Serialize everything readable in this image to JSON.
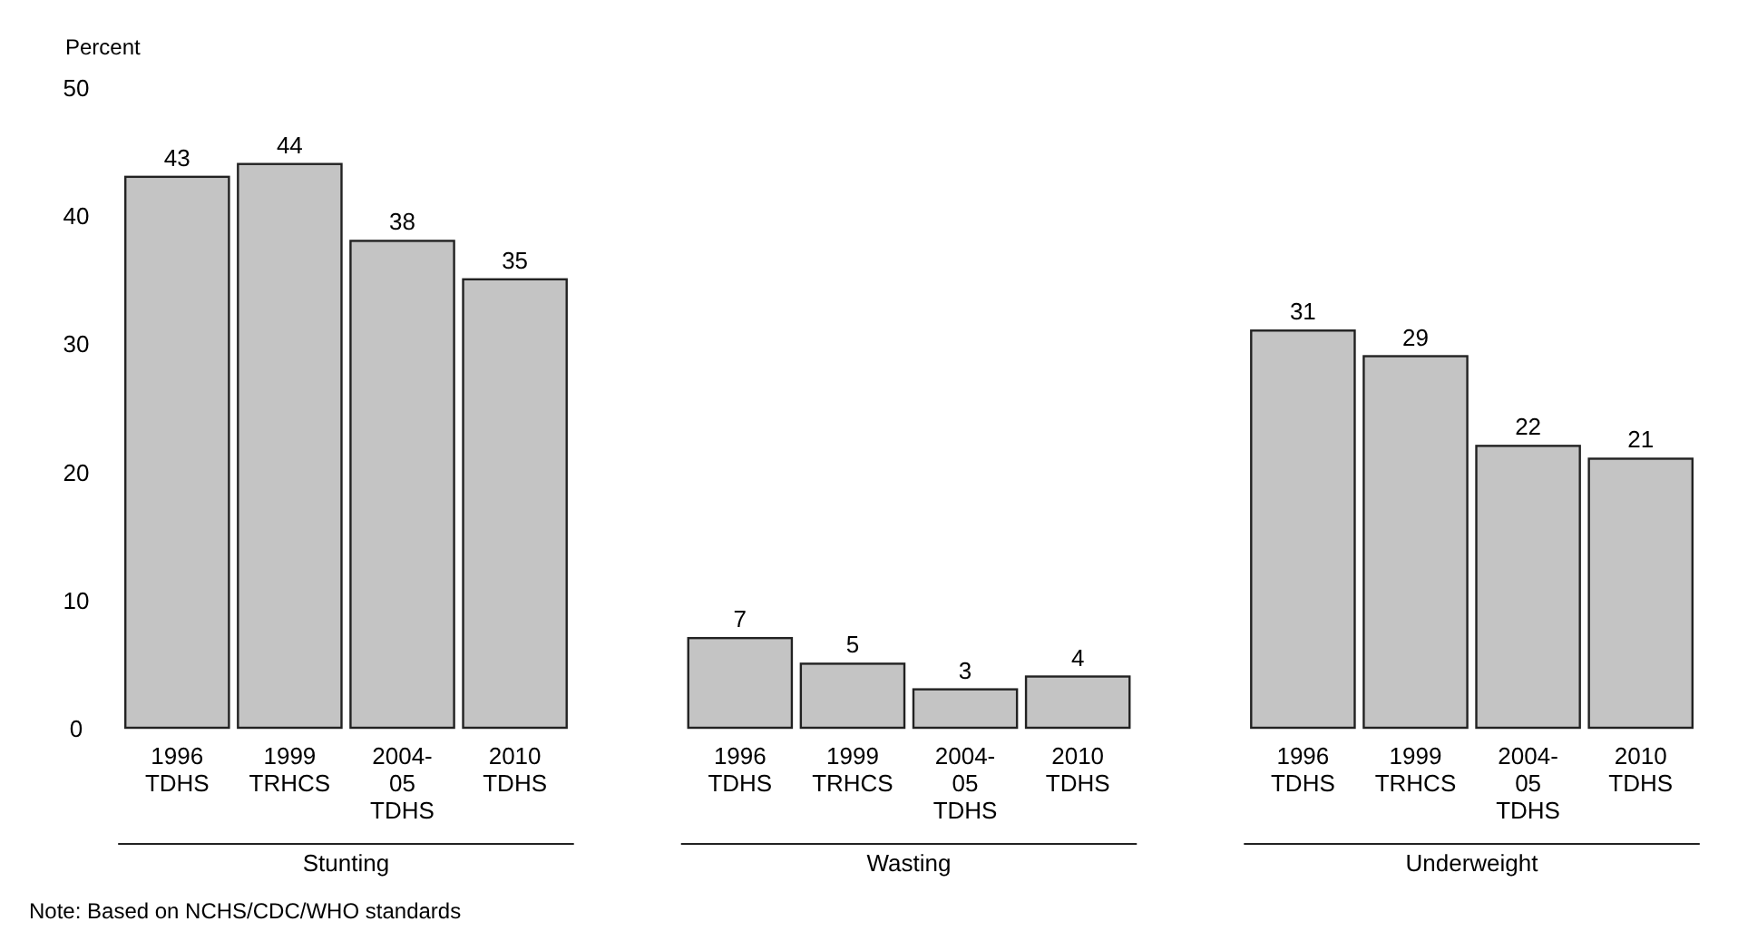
{
  "chart_data": {
    "type": "bar",
    "ylabel": "Percent",
    "categories": [
      "1996\nTDHS",
      "1999\nTRHCS",
      "2004-\n05\nTDHS",
      "2010\nTDHS",
      null,
      "1996\nTDHS",
      "1999\nTRHCS",
      "2004-\n05\nTDHS",
      "2010\nTDHS",
      null,
      "1996\nTDHS",
      "1999\nTRHCS",
      "2004-\n05\nTDHS",
      "2010\nTDHS"
    ],
    "values": [
      43,
      44,
      38,
      35,
      null,
      7,
      5,
      3,
      4,
      null,
      31,
      29,
      22,
      21
    ],
    "color": "#c4c4c4",
    "data_labels": true,
    "ylim": [
      0,
      50
    ],
    "yticks": [
      0,
      10,
      20,
      30,
      40,
      50
    ],
    "grid": false,
    "annotations": [
      "Stunting",
      "Wasting",
      "Underweight",
      "Note: Based on NCHS/CDC/WHO standards"
    ]
  }
}
